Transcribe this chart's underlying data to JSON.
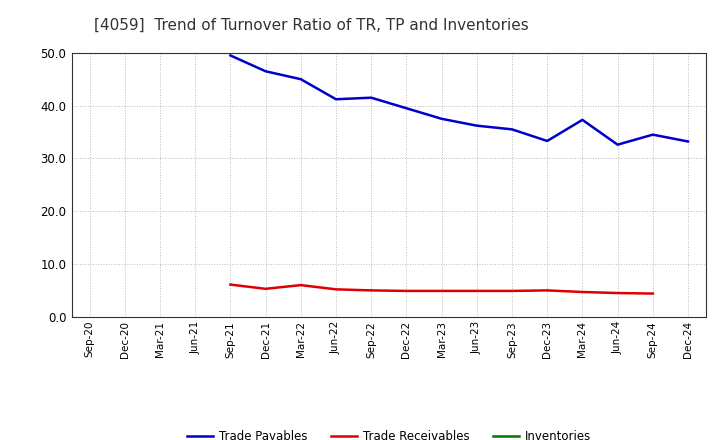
{
  "title": "[4059]  Trend of Turnover Ratio of TR, TP and Inventories",
  "x_labels": [
    "Sep-20",
    "Dec-20",
    "Mar-21",
    "Jun-21",
    "Sep-21",
    "Dec-21",
    "Mar-22",
    "Jun-22",
    "Sep-22",
    "Dec-22",
    "Mar-23",
    "Jun-23",
    "Sep-23",
    "Dec-23",
    "Mar-24",
    "Jun-24",
    "Sep-24",
    "Dec-24"
  ],
  "tp_x_indices": [
    4,
    5,
    6,
    7,
    8,
    9,
    10,
    11,
    12,
    13,
    14,
    15,
    16,
    17
  ],
  "tp_y": [
    49.5,
    46.5,
    45.0,
    41.2,
    41.5,
    39.5,
    37.5,
    36.2,
    35.5,
    33.3,
    37.3,
    32.6,
    34.5,
    33.2
  ],
  "tr_x_indices": [
    4,
    5,
    6,
    7,
    8,
    9,
    10,
    11,
    12,
    13,
    14,
    15,
    16
  ],
  "tr_y": [
    6.1,
    5.3,
    6.0,
    5.2,
    5.0,
    4.9,
    4.9,
    4.9,
    4.9,
    5.0,
    4.7,
    4.5,
    4.4
  ],
  "ylim": [
    0.0,
    50.0
  ],
  "yticks": [
    0.0,
    10.0,
    20.0,
    30.0,
    40.0,
    50.0
  ],
  "colors": {
    "trade_receivables": "#dd0000",
    "trade_payables": "#0000cc",
    "inventories": "#007700"
  },
  "background_color": "#ffffff",
  "grid_color": "#bbbbbb",
  "title_fontsize": 11,
  "legend_labels": [
    "Trade Receivables",
    "Trade Payables",
    "Inventories"
  ]
}
